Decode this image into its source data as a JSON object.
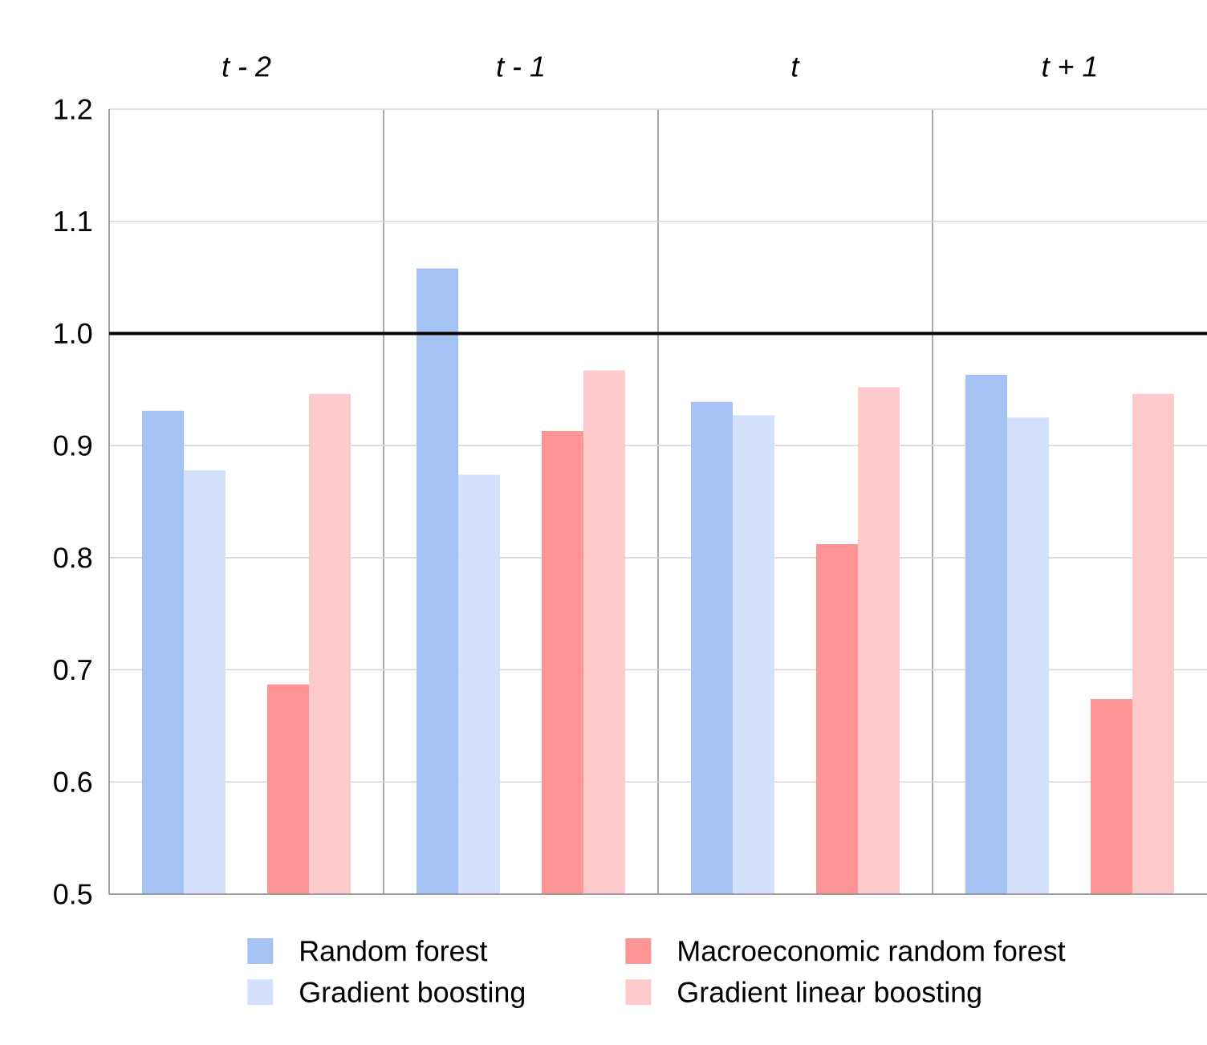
{
  "chart_data": {
    "type": "bar",
    "categories": [
      "*t - 2*",
      "*t - 1*",
      "*t*",
      "*t + 1*"
    ],
    "series": [
      {
        "name": "Random forest",
        "color": "#a4c2f4",
        "values": [
          0.931,
          1.058,
          0.939,
          0.963
        ]
      },
      {
        "name": "Gradient boosting",
        "color": "#d2e0fc",
        "values": [
          0.878,
          0.874,
          0.927,
          0.925
        ]
      },
      {
        "name": "Macroeconomic random forest",
        "color": "#ff9494",
        "values": [
          0.687,
          0.913,
          0.812,
          0.674
        ]
      },
      {
        "name": "Gradient linear boosting",
        "color": "#ffcacc",
        "values": [
          0.946,
          0.967,
          0.952,
          0.946
        ]
      }
    ],
    "ylim": [
      0.5,
      1.2
    ],
    "yticks": [
      0.5,
      0.6,
      0.7,
      0.8,
      0.9,
      {
        "value": 1.0,
        "label": "1.0"
      },
      1.1,
      1.2
    ],
    "ref_lines": [
      {
        "axis": "y",
        "value": 1.0,
        "color": "#000000"
      }
    ],
    "grid": "y",
    "legend": "bottom"
  }
}
